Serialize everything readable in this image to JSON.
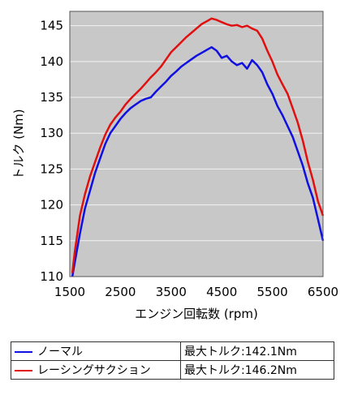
{
  "chart_data": {
    "type": "line",
    "xlabel": "エンジン回転数 (rpm)",
    "ylabel": "トルク (Nm)",
    "xlim": [
      1500,
      6500
    ],
    "ylim": [
      110,
      147
    ],
    "xticks": [
      "1500",
      "2500",
      "3500",
      "4500",
      "5500",
      "6500"
    ],
    "yticks": [
      "110",
      "115",
      "120",
      "125",
      "130",
      "135",
      "140",
      "145"
    ],
    "background": "#c8c8c8",
    "grid": "horizontal",
    "series": [
      {
        "name": "ノーマル",
        "color": "#1010e0",
        "max_label": "最大トルク:142.1Nm",
        "x": [
          1550,
          1600,
          1700,
          1800,
          1900,
          2000,
          2100,
          2200,
          2300,
          2400,
          2500,
          2600,
          2700,
          2800,
          2900,
          3000,
          3100,
          3200,
          3300,
          3400,
          3500,
          3600,
          3700,
          3800,
          3900,
          4000,
          4100,
          4200,
          4300,
          4400,
          4500,
          4600,
          4700,
          4800,
          4900,
          5000,
          5100,
          5200,
          5300,
          5400,
          5500,
          5600,
          5700,
          5800,
          5900,
          6000,
          6100,
          6200,
          6300,
          6400,
          6500
        ],
        "y": [
          110.0,
          112.0,
          116.0,
          119.5,
          122.0,
          124.5,
          126.5,
          128.5,
          130.0,
          131.0,
          132.0,
          132.8,
          133.5,
          134.0,
          134.5,
          134.8,
          135.0,
          135.8,
          136.5,
          137.2,
          138.0,
          138.6,
          139.3,
          139.8,
          140.3,
          140.8,
          141.2,
          141.6,
          142.0,
          141.5,
          140.5,
          140.8,
          140.0,
          139.5,
          139.8,
          139.0,
          140.2,
          139.5,
          138.5,
          136.8,
          135.5,
          133.8,
          132.5,
          131.0,
          129.5,
          127.5,
          125.5,
          123.0,
          121.0,
          118.0,
          115.0
        ]
      },
      {
        "name": "レーシングサクション",
        "color": "#e01010",
        "max_label": "最大トルク:146.2Nm",
        "x": [
          1550,
          1600,
          1700,
          1800,
          1900,
          2000,
          2100,
          2200,
          2300,
          2400,
          2500,
          2600,
          2700,
          2800,
          2900,
          3000,
          3100,
          3200,
          3300,
          3400,
          3500,
          3600,
          3700,
          3800,
          3900,
          4000,
          4100,
          4200,
          4300,
          4400,
          4500,
          4600,
          4700,
          4800,
          4900,
          5000,
          5100,
          5200,
          5300,
          5400,
          5500,
          5600,
          5700,
          5800,
          5900,
          6000,
          6100,
          6200,
          6300,
          6400,
          6500
        ],
        "y": [
          110.5,
          113.5,
          118.5,
          121.5,
          124.0,
          126.0,
          128.0,
          129.8,
          131.2,
          132.2,
          133.0,
          134.0,
          134.8,
          135.5,
          136.2,
          137.0,
          137.8,
          138.5,
          139.3,
          140.3,
          141.3,
          142.0,
          142.7,
          143.4,
          144.0,
          144.6,
          145.2,
          145.6,
          146.0,
          145.8,
          145.5,
          145.2,
          145.0,
          145.1,
          144.8,
          145.0,
          144.6,
          144.3,
          143.2,
          141.5,
          140.0,
          138.2,
          136.8,
          135.5,
          133.5,
          131.5,
          129.0,
          126.0,
          123.5,
          120.5,
          118.5
        ]
      }
    ]
  }
}
